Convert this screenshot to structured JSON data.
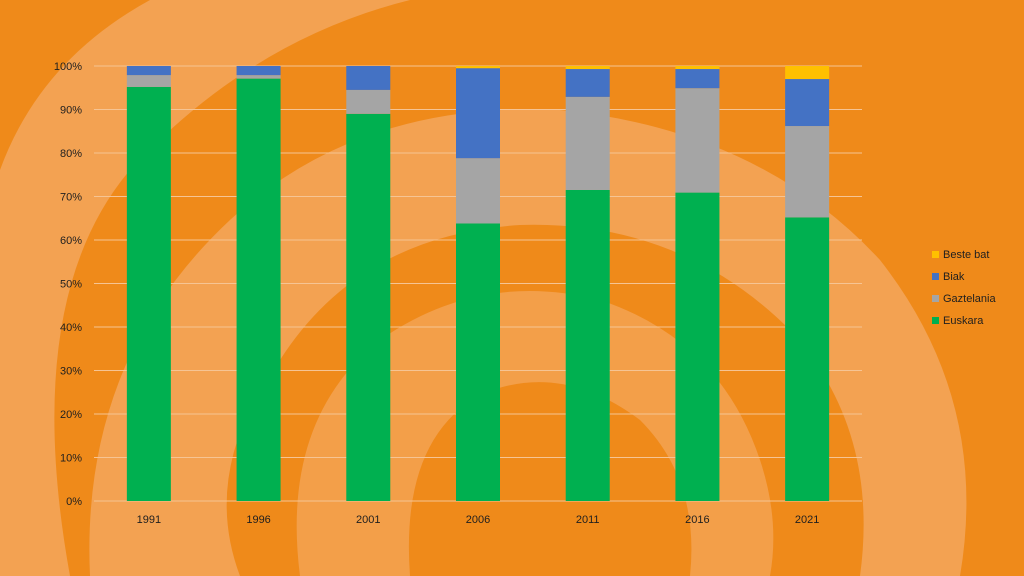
{
  "chart_data": {
    "type": "bar",
    "stacked": true,
    "categories": [
      "1991",
      "1996",
      "2001",
      "2006",
      "2011",
      "2016",
      "2021"
    ],
    "series": [
      {
        "name": "Euskara",
        "color": "#00b050",
        "values": [
          95.2,
          97.1,
          89.0,
          63.8,
          71.5,
          70.9,
          65.2
        ]
      },
      {
        "name": "Gaztelania",
        "color": "#a5a5a5",
        "values": [
          2.7,
          0.8,
          5.5,
          15.0,
          21.4,
          24.0,
          21.0
        ]
      },
      {
        "name": "Biak",
        "color": "#4472c4",
        "values": [
          2.1,
          2.1,
          5.5,
          20.7,
          6.4,
          4.4,
          10.8
        ]
      },
      {
        "name": "Beste bat",
        "color": "#ffc000",
        "values": [
          0.0,
          0.0,
          0.0,
          0.5,
          0.7,
          0.7,
          3.0
        ]
      }
    ],
    "ylim": [
      0,
      100
    ],
    "yticks": [
      "0%",
      "10%",
      "20%",
      "30%",
      "40%",
      "50%",
      "60%",
      "70%",
      "80%",
      "90%",
      "100%"
    ],
    "title": "",
    "xlabel": "",
    "ylabel": "",
    "grid": true,
    "legend_position": "right",
    "legend_order": [
      "Beste bat",
      "Biak",
      "Gaztelania",
      "Euskara"
    ]
  },
  "colors": {
    "background": "#ef8a1a",
    "swirl": "#f3a252",
    "gridline": "#f6c493"
  }
}
